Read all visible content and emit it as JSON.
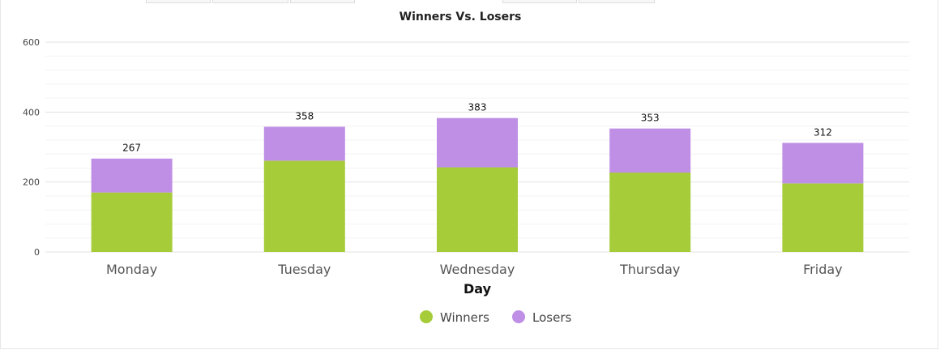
{
  "chart_data": {
    "type": "bar",
    "stacked": true,
    "title": "Winners Vs. Losers",
    "xlabel": "Day",
    "ylabel": "",
    "ylim": [
      0,
      600
    ],
    "yticks": [
      "0",
      "200",
      "400",
      "600"
    ],
    "categories": [
      "Monday",
      "Tuesday",
      "Wednesday",
      "Thursday",
      "Friday"
    ],
    "series": [
      {
        "name": "Winners",
        "color": "#a6cc3a",
        "values": [
          170,
          261,
          242,
          227,
          196
        ]
      },
      {
        "name": "Losers",
        "color": "#bf8fe6",
        "values": [
          97,
          97,
          141,
          126,
          116
        ]
      }
    ],
    "totals": [
      "267",
      "358",
      "383",
      "353",
      "312"
    ],
    "legend_position": "bottom-center",
    "grid": true
  }
}
